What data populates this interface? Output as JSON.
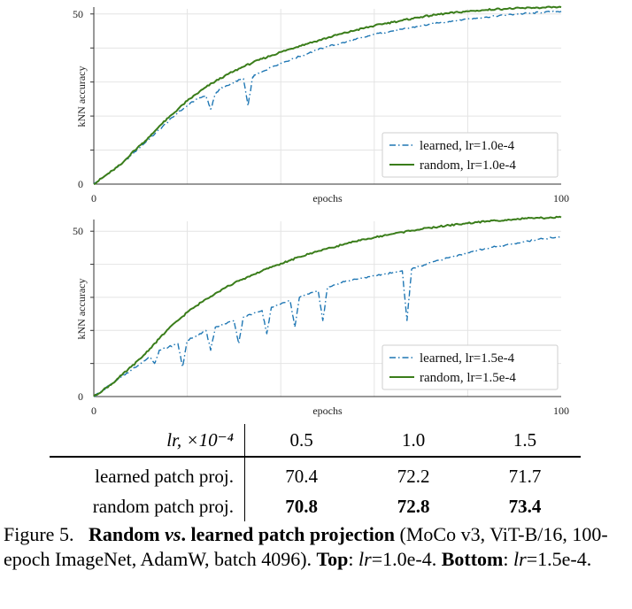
{
  "chart_data": [
    {
      "type": "line",
      "id": "top",
      "xlabel": "epochs",
      "ylabel": "kNN accuracy",
      "xlim": [
        0,
        100
      ],
      "ylim": [
        0,
        51.5
      ],
      "x_ticks": [
        0,
        100
      ],
      "y_ticks": [
        0,
        50
      ],
      "grid": true,
      "legend_position": "bottom-right",
      "series": [
        {
          "name": "learned, lr=1.0e-4",
          "color": "#1f77b4",
          "style": "dashdot",
          "x": [
            0,
            2,
            4,
            6,
            8,
            10,
            12,
            14,
            16,
            18,
            20,
            22,
            24,
            25,
            26,
            27,
            28,
            30,
            32,
            33,
            34,
            35,
            36,
            38,
            40,
            42,
            44,
            46,
            48,
            50,
            52,
            54,
            56,
            58,
            60,
            62,
            64,
            66,
            68,
            70,
            72,
            74,
            76,
            78,
            80,
            82,
            84,
            86,
            88,
            90,
            92,
            94,
            96,
            98,
            100
          ],
          "y": [
            0,
            2,
            4,
            6,
            8.5,
            11,
            13.5,
            16,
            18.5,
            21,
            23,
            25,
            26,
            22,
            26.5,
            28,
            28.5,
            30,
            31,
            23,
            31.5,
            32.5,
            33,
            34.5,
            35.5,
            36.5,
            37.5,
            38.5,
            39.5,
            40.5,
            41,
            41.8,
            42.5,
            43.2,
            44,
            44.5,
            45,
            45.5,
            46,
            46.5,
            47,
            47.4,
            47.8,
            48.2,
            48.5,
            48.8,
            49.1,
            49.4,
            49.6,
            49.9,
            50.1,
            50.3,
            50.5,
            50.6,
            50.8
          ]
        },
        {
          "name": "random, lr=1.0e-4",
          "color": "#3a7d1a",
          "style": "solid",
          "x": [
            0,
            2,
            4,
            6,
            8,
            10,
            12,
            14,
            16,
            18,
            20,
            22,
            24,
            26,
            28,
            30,
            32,
            34,
            36,
            38,
            40,
            42,
            44,
            46,
            48,
            50,
            52,
            54,
            56,
            58,
            60,
            62,
            64,
            66,
            68,
            70,
            72,
            74,
            76,
            78,
            80,
            82,
            84,
            86,
            88,
            90,
            92,
            94,
            96,
            98,
            100
          ],
          "y": [
            0,
            2,
            4,
            6,
            9,
            11.5,
            14,
            17,
            19.5,
            22,
            24.5,
            26.5,
            28.5,
            30.2,
            31.8,
            33.2,
            34.5,
            35.7,
            36.8,
            37.8,
            38.8,
            39.7,
            40.6,
            41.4,
            42.2,
            43,
            43.8,
            44.5,
            45.2,
            45.9,
            46.5,
            47.1,
            47.6,
            48.1,
            48.6,
            49.1,
            49.5,
            49.9,
            50.2,
            50.5,
            50.8,
            51,
            51.2,
            51.4,
            51.5,
            51.6,
            51.7,
            51.8,
            51.9,
            51.9,
            52
          ]
        }
      ]
    },
    {
      "type": "line",
      "id": "bottom",
      "xlabel": "epochs",
      "ylabel": "kNN accuracy",
      "xlim": [
        0,
        100
      ],
      "ylim": [
        0,
        53
      ],
      "x_ticks": [
        0,
        100
      ],
      "y_ticks": [
        0,
        50
      ],
      "grid": true,
      "legend_position": "bottom-right",
      "series": [
        {
          "name": "learned, lr=1.5e-4",
          "color": "#1f77b4",
          "style": "dashdot",
          "x": [
            0,
            2,
            4,
            6,
            8,
            10,
            12,
            13,
            14,
            16,
            18,
            19,
            20,
            22,
            24,
            25,
            26,
            28,
            30,
            31,
            32,
            34,
            36,
            37,
            38,
            40,
            42,
            43,
            44,
            46,
            48,
            49,
            50,
            52,
            54,
            56,
            58,
            60,
            62,
            64,
            66,
            67,
            68,
            70,
            72,
            74,
            76,
            78,
            80,
            82,
            84,
            86,
            88,
            90,
            92,
            94,
            96,
            98,
            100
          ],
          "y": [
            0,
            2,
            4,
            6,
            8,
            10,
            12,
            10,
            14,
            15,
            16,
            9,
            17,
            18.5,
            20,
            14,
            21,
            22,
            23,
            16,
            24,
            25,
            26,
            19,
            27,
            28,
            29,
            21,
            30,
            31,
            32,
            23,
            33,
            34,
            35,
            35.5,
            36,
            36.5,
            37,
            37.5,
            38,
            23,
            38.5,
            39.5,
            40.5,
            41.3,
            42,
            42.8,
            43.5,
            44.2,
            44.8,
            45.3,
            45.8,
            46.3,
            46.8,
            47.3,
            47.7,
            48,
            48.2
          ]
        },
        {
          "name": "random, lr=1.5e-4",
          "color": "#3a7d1a",
          "style": "solid",
          "x": [
            0,
            2,
            4,
            6,
            8,
            10,
            12,
            14,
            16,
            18,
            20,
            22,
            24,
            26,
            28,
            30,
            32,
            34,
            36,
            38,
            40,
            42,
            44,
            46,
            48,
            50,
            52,
            54,
            56,
            58,
            60,
            62,
            64,
            66,
            68,
            70,
            72,
            74,
            76,
            78,
            80,
            82,
            84,
            86,
            88,
            90,
            92,
            94,
            96,
            98,
            100
          ],
          "y": [
            0,
            2,
            4,
            6.5,
            9,
            11.5,
            14.5,
            17.5,
            20.5,
            23,
            25.5,
            27.5,
            29.5,
            31.2,
            32.8,
            34.3,
            35.6,
            36.8,
            38,
            39.1,
            40.2,
            41.2,
            42.2,
            43.1,
            44,
            44.8,
            45.5,
            46.2,
            46.9,
            47.5,
            48.1,
            48.7,
            49.2,
            49.7,
            50.2,
            50.6,
            51,
            51.4,
            51.8,
            52.1,
            52.4,
            52.7,
            53,
            53.2,
            53.4,
            53.6,
            53.8,
            53.9,
            54,
            54.1,
            54.2
          ]
        }
      ]
    }
  ],
  "table": {
    "header": [
      "lr, ×10⁻⁴",
      "0.5",
      "1.0",
      "1.5"
    ],
    "rows": [
      {
        "label": "learned patch proj.",
        "values": [
          "70.4",
          "72.2",
          "71.7"
        ],
        "bold": [
          false,
          false,
          false
        ]
      },
      {
        "label": "random patch proj.",
        "values": [
          "70.8",
          "72.8",
          "73.4"
        ],
        "bold": [
          true,
          true,
          true
        ]
      }
    ]
  },
  "caption": {
    "prefix": "Figure 5.",
    "title_a": "Random ",
    "title_vs": "vs",
    "title_b": ". learned patch projection",
    "details": " (MoCo v3, ViT-B/16, 100-epoch ImageNet, AdamW, batch 4096). ",
    "top_label": "Top",
    "top_lr": "lr",
    "top_value": "=1.0e-4. ",
    "bottom_label": "Bottom",
    "bottom_lr": "lr",
    "bottom_value": "=1.5e-4."
  }
}
